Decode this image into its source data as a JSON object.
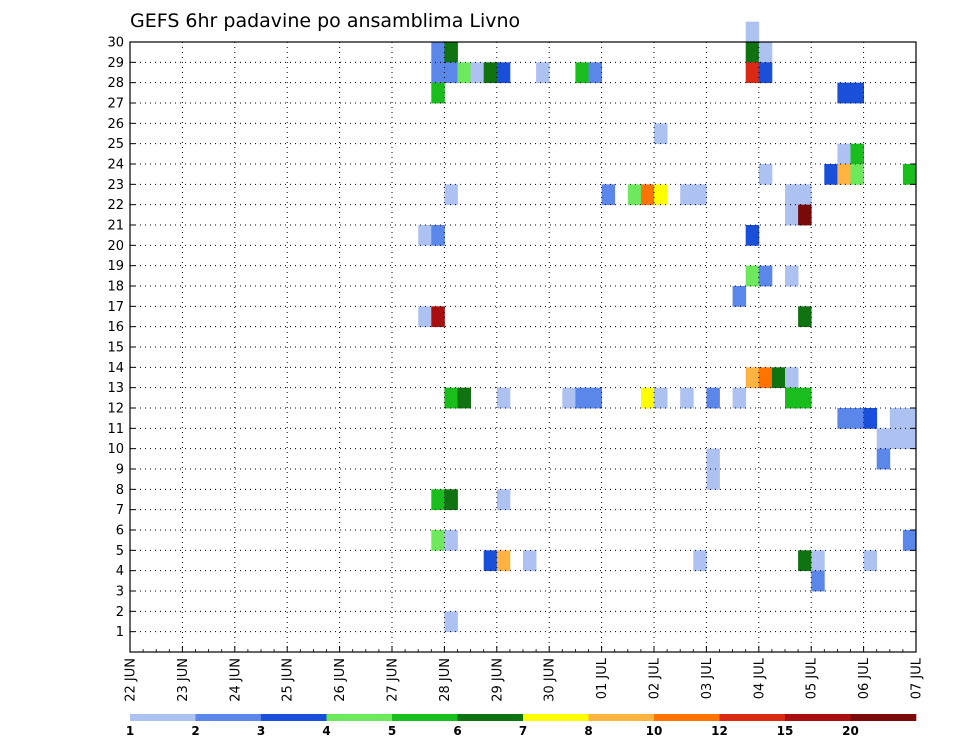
{
  "chart_data": {
    "type": "heatmap",
    "title": "GEFS 6hr padavine po ansamblima Livno",
    "xlabel": "",
    "ylabel": "",
    "x_tick_labels": [
      "22 JUN",
      "23 JUN",
      "24 JUN",
      "25 JUN",
      "26 JUN",
      "27 JUN",
      "28 JUN",
      "29 JUN",
      "30 JUN",
      "01 JUL",
      "02 JUL",
      "03 JUL",
      "04 JUL",
      "05 JUL",
      "06 JUL",
      "07 JUL"
    ],
    "x_step_hours": 6,
    "y_tick_labels": [
      "1",
      "2",
      "3",
      "4",
      "5",
      "6",
      "7",
      "8",
      "9",
      "10",
      "11",
      "12",
      "13",
      "14",
      "15",
      "16",
      "17",
      "18",
      "19",
      "20",
      "21",
      "22",
      "23",
      "24",
      "25",
      "26",
      "27",
      "28",
      "29",
      "30"
    ],
    "ylim": [
      0,
      30
    ],
    "grid": true,
    "legend_position": "bottom",
    "colorbar": {
      "labels": [
        "1",
        "2",
        "3",
        "4",
        "5",
        "6",
        "7",
        "8",
        "10",
        "12",
        "15",
        "20"
      ],
      "colors": [
        "#aec2f2",
        "#5c87ea",
        "#1a4fd9",
        "#6ee85c",
        "#19be1d",
        "#107311",
        "#ffff00",
        "#ffb340",
        "#ff7300",
        "#db2a14",
        "#aa0f0f",
        "#7a0a0a"
      ]
    },
    "cells": [
      {
        "x": 23,
        "y": 30,
        "c": 1
      },
      {
        "x": 24,
        "y": 30,
        "c": 5
      },
      {
        "x": 47,
        "y": 30,
        "c": 5
      },
      {
        "x": 48,
        "y": 30,
        "c": 0
      },
      {
        "x": 47,
        "y": 31,
        "c": 0
      },
      {
        "x": 23,
        "y": 29,
        "c": 1
      },
      {
        "x": 24,
        "y": 29,
        "c": 1
      },
      {
        "x": 25,
        "y": 29,
        "c": 3
      },
      {
        "x": 26,
        "y": 29,
        "c": 0
      },
      {
        "x": 27,
        "y": 29,
        "c": 5
      },
      {
        "x": 28,
        "y": 29,
        "c": 2
      },
      {
        "x": 31,
        "y": 29,
        "c": 0
      },
      {
        "x": 34,
        "y": 29,
        "c": 4
      },
      {
        "x": 35,
        "y": 29,
        "c": 1
      },
      {
        "x": 47,
        "y": 29,
        "c": 9
      },
      {
        "x": 48,
        "y": 29,
        "c": 2
      },
      {
        "x": 23,
        "y": 28,
        "c": 4
      },
      {
        "x": 54,
        "y": 28,
        "c": 2
      },
      {
        "x": 55,
        "y": 28,
        "c": 2
      },
      {
        "x": 40,
        "y": 26,
        "c": 0
      },
      {
        "x": 54,
        "y": 25,
        "c": 0
      },
      {
        "x": 55,
        "y": 25,
        "c": 4
      },
      {
        "x": 48,
        "y": 24,
        "c": 0
      },
      {
        "x": 53,
        "y": 24,
        "c": 2
      },
      {
        "x": 54,
        "y": 24,
        "c": 7
      },
      {
        "x": 55,
        "y": 24,
        "c": 3
      },
      {
        "x": 59,
        "y": 24,
        "c": 4
      },
      {
        "x": 24,
        "y": 23,
        "c": 0
      },
      {
        "x": 36,
        "y": 23,
        "c": 1
      },
      {
        "x": 38,
        "y": 23,
        "c": 3
      },
      {
        "x": 39,
        "y": 23,
        "c": 8
      },
      {
        "x": 40,
        "y": 23,
        "c": 6
      },
      {
        "x": 42,
        "y": 23,
        "c": 0
      },
      {
        "x": 43,
        "y": 23,
        "c": 0
      },
      {
        "x": 50,
        "y": 23,
        "c": 0
      },
      {
        "x": 51,
        "y": 23,
        "c": 0
      },
      {
        "x": 50,
        "y": 22,
        "c": 0
      },
      {
        "x": 51,
        "y": 22,
        "c": 11
      },
      {
        "x": 22,
        "y": 21,
        "c": 0
      },
      {
        "x": 23,
        "y": 21,
        "c": 1
      },
      {
        "x": 47,
        "y": 21,
        "c": 2
      },
      {
        "x": 47,
        "y": 19,
        "c": 3
      },
      {
        "x": 48,
        "y": 19,
        "c": 1
      },
      {
        "x": 50,
        "y": 19,
        "c": 0
      },
      {
        "x": 46,
        "y": 18,
        "c": 1
      },
      {
        "x": 22,
        "y": 17,
        "c": 0
      },
      {
        "x": 23,
        "y": 17,
        "c": 10
      },
      {
        "x": 51,
        "y": 17,
        "c": 5
      },
      {
        "x": 47,
        "y": 14,
        "c": 7
      },
      {
        "x": 48,
        "y": 14,
        "c": 8
      },
      {
        "x": 49,
        "y": 14,
        "c": 5
      },
      {
        "x": 50,
        "y": 14,
        "c": 0
      },
      {
        "x": 24,
        "y": 13,
        "c": 4
      },
      {
        "x": 25,
        "y": 13,
        "c": 5
      },
      {
        "x": 28,
        "y": 13,
        "c": 0
      },
      {
        "x": 33,
        "y": 13,
        "c": 0
      },
      {
        "x": 34,
        "y": 13,
        "c": 1
      },
      {
        "x": 35,
        "y": 13,
        "c": 1
      },
      {
        "x": 39,
        "y": 13,
        "c": 6
      },
      {
        "x": 40,
        "y": 13,
        "c": 0
      },
      {
        "x": 42,
        "y": 13,
        "c": 0
      },
      {
        "x": 44,
        "y": 13,
        "c": 1
      },
      {
        "x": 46,
        "y": 13,
        "c": 0
      },
      {
        "x": 50,
        "y": 13,
        "c": 4
      },
      {
        "x": 51,
        "y": 13,
        "c": 4
      },
      {
        "x": 54,
        "y": 12,
        "c": 1
      },
      {
        "x": 55,
        "y": 12,
        "c": 1
      },
      {
        "x": 56,
        "y": 12,
        "c": 2
      },
      {
        "x": 58,
        "y": 12,
        "c": 0
      },
      {
        "x": 59,
        "y": 12,
        "c": 0
      },
      {
        "x": 57,
        "y": 11,
        "c": 0
      },
      {
        "x": 58,
        "y": 11,
        "c": 0
      },
      {
        "x": 59,
        "y": 11,
        "c": 0
      },
      {
        "x": 44,
        "y": 10,
        "c": 0
      },
      {
        "x": 57,
        "y": 10,
        "c": 1
      },
      {
        "x": 44,
        "y": 9,
        "c": 0
      },
      {
        "x": 23,
        "y": 8,
        "c": 4
      },
      {
        "x": 24,
        "y": 8,
        "c": 5
      },
      {
        "x": 28,
        "y": 8,
        "c": 0
      },
      {
        "x": 23,
        "y": 6,
        "c": 3
      },
      {
        "x": 24,
        "y": 6,
        "c": 0
      },
      {
        "x": 59,
        "y": 6,
        "c": 1
      },
      {
        "x": 27,
        "y": 5,
        "c": 2
      },
      {
        "x": 28,
        "y": 5,
        "c": 7
      },
      {
        "x": 30,
        "y": 5,
        "c": 0
      },
      {
        "x": 43,
        "y": 5,
        "c": 0
      },
      {
        "x": 51,
        "y": 5,
        "c": 5
      },
      {
        "x": 52,
        "y": 5,
        "c": 0
      },
      {
        "x": 56,
        "y": 5,
        "c": 0
      },
      {
        "x": 52,
        "y": 4,
        "c": 1
      },
      {
        "x": 24,
        "y": 2,
        "c": 0
      }
    ]
  }
}
